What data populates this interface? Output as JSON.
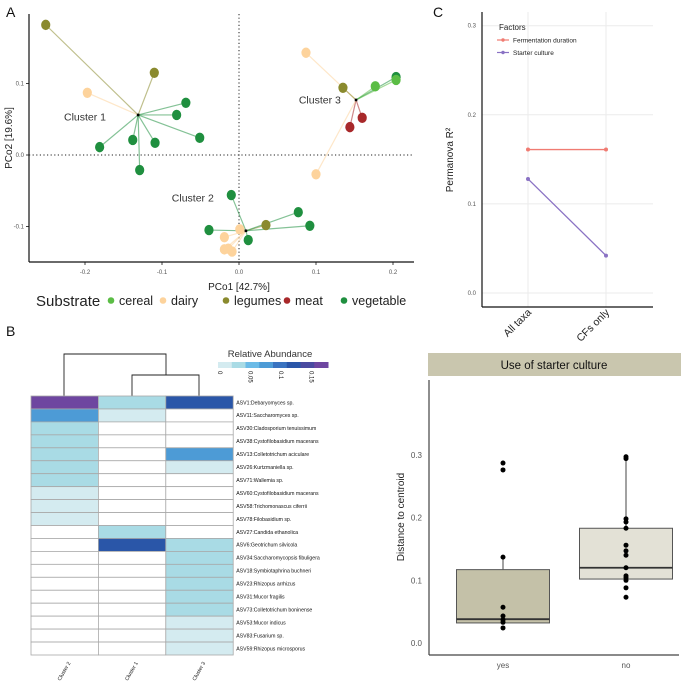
{
  "figure": {
    "panel_labels": [
      "A",
      "B",
      "C"
    ]
  },
  "chart_data": [
    {
      "id": "A",
      "type": "scatter",
      "title": "",
      "xlabel": "PCo1 [42.7%]",
      "ylabel": "PCo2 [19.6%]",
      "xlim": [
        -0.275,
        0.225
      ],
      "ylim": [
        -0.15,
        0.19
      ],
      "xticks": [
        -0.2,
        -0.1,
        0.0,
        0.1,
        0.2
      ],
      "yticks": [
        -0.1,
        0.0,
        0.1
      ],
      "xtick_labels": [
        "-0.2",
        "-0.1",
        "0.0",
        "0.1",
        "0.2"
      ],
      "ytick_labels": [
        "-0.1",
        "0.0",
        "0.1"
      ],
      "reference_lines": {
        "x": 0,
        "y": 0,
        "style": "dotted"
      },
      "legend": {
        "title": "Substrate",
        "position": "bottom",
        "entries": [
          {
            "label": "cereal",
            "color": "#5bbd45"
          },
          {
            "label": "dairy",
            "color": "#fdd39c"
          },
          {
            "label": "legumes",
            "color": "#8a8a2e"
          },
          {
            "label": "meat",
            "color": "#a8282a"
          },
          {
            "label": "vegetable",
            "color": "#1f8f3f"
          }
        ]
      },
      "clusters": [
        {
          "label": "Cluster 1",
          "centroid": [
            -0.131,
            0.056
          ],
          "points": [
            {
              "x": -0.251,
              "y": 0.182,
              "substrate": "legumes"
            },
            {
              "x": -0.197,
              "y": 0.087,
              "substrate": "dairy"
            },
            {
              "x": -0.11,
              "y": 0.115,
              "substrate": "legumes"
            },
            {
              "x": -0.069,
              "y": 0.073,
              "substrate": "vegetable"
            },
            {
              "x": -0.081,
              "y": 0.056,
              "substrate": "vegetable"
            },
            {
              "x": -0.051,
              "y": 0.024,
              "substrate": "vegetable"
            },
            {
              "x": -0.181,
              "y": 0.011,
              "substrate": "vegetable"
            },
            {
              "x": -0.138,
              "y": 0.021,
              "substrate": "vegetable"
            },
            {
              "x": -0.109,
              "y": 0.017,
              "substrate": "vegetable"
            },
            {
              "x": -0.129,
              "y": -0.021,
              "substrate": "vegetable"
            }
          ]
        },
        {
          "label": "Cluster 2",
          "centroid": [
            0.009,
            -0.106
          ],
          "points": [
            {
              "x": -0.01,
              "y": -0.056,
              "substrate": "vegetable"
            },
            {
              "x": -0.039,
              "y": -0.105,
              "substrate": "vegetable"
            },
            {
              "x": 0.001,
              "y": -0.104,
              "substrate": "dairy"
            },
            {
              "x": -0.019,
              "y": -0.115,
              "substrate": "dairy"
            },
            {
              "x": -0.019,
              "y": -0.132,
              "substrate": "dairy"
            },
            {
              "x": -0.014,
              "y": -0.131,
              "substrate": "dairy"
            },
            {
              "x": -0.009,
              "y": -0.135,
              "substrate": "dairy"
            },
            {
              "x": 0.012,
              "y": -0.119,
              "substrate": "vegetable"
            },
            {
              "x": 0.035,
              "y": -0.098,
              "substrate": "legumes"
            },
            {
              "x": 0.077,
              "y": -0.08,
              "substrate": "vegetable"
            },
            {
              "x": 0.092,
              "y": -0.099,
              "substrate": "vegetable"
            }
          ]
        },
        {
          "label": "Cluster 3",
          "centroid": [
            0.152,
            0.077
          ],
          "points": [
            {
              "x": 0.087,
              "y": 0.143,
              "substrate": "dairy"
            },
            {
              "x": 0.135,
              "y": 0.094,
              "substrate": "legumes"
            },
            {
              "x": 0.177,
              "y": 0.096,
              "substrate": "cereal"
            },
            {
              "x": 0.204,
              "y": 0.109,
              "substrate": "vegetable"
            },
            {
              "x": 0.204,
              "y": 0.105,
              "substrate": "cereal"
            },
            {
              "x": 0.144,
              "y": 0.039,
              "substrate": "meat"
            },
            {
              "x": 0.16,
              "y": 0.052,
              "substrate": "meat"
            },
            {
              "x": 0.1,
              "y": -0.027,
              "substrate": "dairy"
            }
          ]
        }
      ]
    },
    {
      "id": "B",
      "type": "heatmap",
      "legend": {
        "title": "Relative Abundance",
        "tick_labels": [
          "0",
          "0.05",
          "0.1",
          "0.15"
        ],
        "range": [
          0,
          0.18
        ],
        "colors": [
          "#d4ebf0",
          "#a9dbe5",
          "#6bbbe7",
          "#4d9bd6",
          "#3a73c0",
          "#2a56a8",
          "#4a4aa0",
          "#6e46a0"
        ]
      },
      "columns": [
        "Cluster 2",
        "Cluster 1",
        "Cluster 3"
      ],
      "dendrogram": "Cluster 2 | (Cluster 1, Cluster 3)",
      "rows": [
        "ASV1:Debaryomyces sp.",
        "ASV11:Saccharomyces sp.",
        "ASV30:Cladosporium tenuissimum",
        "ASV38:Cystofilobasidium macerans",
        "ASV13:Colletotrichum aciculare",
        "ASV26:Kurtzmaniella sp.",
        "ASV71:Wallemia sp.",
        "ASV60:Cystofilobasidium macerans",
        "ASV58:Trichomonascus ciferrii",
        "ASV78:Filobasidium sp.",
        "ASV27:Candida ethanolica",
        "ASV6:Geotrichum silvicola",
        "ASV34:Saccharomycopsis fibuligera",
        "ASV18:Symbiotaphrina buchneri",
        "ASV23:Rhizopus arrhizus",
        "ASV31:Mucor fragilis",
        "ASV73:Colletotrichum boninense",
        "ASV53:Mucor indicus",
        "ASV83:Fusarium sp.",
        "ASV59:Rhizopus microsporus"
      ],
      "values": [
        [
          0.17,
          0.035,
          0.13
        ],
        [
          0.07,
          0.01,
          null
        ],
        [
          0.04,
          null,
          null
        ],
        [
          0.04,
          null,
          null
        ],
        [
          0.04,
          null,
          0.07
        ],
        [
          0.04,
          null,
          0.01
        ],
        [
          0.04,
          null,
          null
        ],
        [
          0.02,
          null,
          null
        ],
        [
          0.02,
          null,
          null
        ],
        [
          0.02,
          null,
          null
        ],
        [
          null,
          0.04,
          null
        ],
        [
          null,
          0.13,
          0.04
        ],
        [
          null,
          null,
          0.04
        ],
        [
          null,
          null,
          0.04
        ],
        [
          null,
          null,
          0.04
        ],
        [
          null,
          null,
          0.04
        ],
        [
          null,
          null,
          0.04
        ],
        [
          null,
          null,
          0.02
        ],
        [
          null,
          null,
          0.02
        ],
        [
          null,
          null,
          0.01
        ]
      ]
    },
    {
      "id": "C",
      "type": "line",
      "xlabel": "",
      "ylabel": "Permanova R²",
      "categories": [
        "All taxa",
        "CFs only"
      ],
      "ylim": [
        -0.005,
        0.31
      ],
      "yticks": [
        0.0,
        0.1,
        0.2,
        0.3
      ],
      "ytick_labels": [
        "0.0",
        "0.1",
        "0.2",
        "0.3"
      ],
      "grid": true,
      "legend": {
        "title": "Factors",
        "position": "top-left"
      },
      "series": [
        {
          "name": "Fermentation duration",
          "color": "#f07b72",
          "values": [
            0.161,
            0.161
          ]
        },
        {
          "name": "Starter culture",
          "color": "#8a72c4",
          "values": [
            0.128,
            0.042
          ]
        }
      ]
    },
    {
      "id": "D",
      "type": "box",
      "title": "Use of starter culture",
      "xlabel": "",
      "ylabel": "Distance to centroid",
      "categories": [
        "yes",
        "no"
      ],
      "ylim": [
        -0.02,
        0.42
      ],
      "yticks": [
        0.0,
        0.1,
        0.2,
        0.3
      ],
      "ytick_labels": [
        "0.0",
        "0.1",
        "0.2",
        "0.3"
      ],
      "boxes": [
        {
          "group": "yes",
          "q1": 0.032,
          "median": 0.038,
          "q3": 0.117,
          "whisker_low": 0.032,
          "whisker_high": 0.137,
          "fill": "#c4c1a8",
          "points": [
            0.287,
            0.276,
            0.137,
            0.057,
            0.043,
            0.037,
            0.033,
            0.024
          ]
        },
        {
          "group": "no",
          "q1": 0.102,
          "median": 0.12,
          "q3": 0.183,
          "whisker_low": 0.102,
          "whisker_high": 0.296,
          "fill": "#e3e1d6",
          "points": [
            0.297,
            0.294,
            0.198,
            0.193,
            0.183,
            0.156,
            0.147,
            0.14,
            0.12,
            0.107,
            0.104,
            0.1,
            0.088,
            0.073
          ]
        }
      ]
    }
  ]
}
